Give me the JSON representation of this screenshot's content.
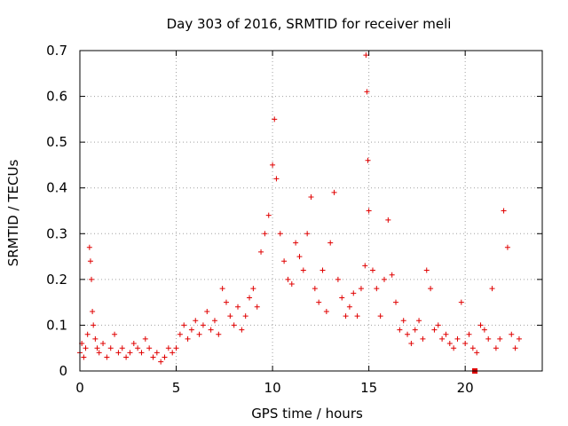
{
  "chart_data": {
    "type": "scatter",
    "title": "Day 303 of 2016, SRMTID for receiver meli",
    "xlabel": "GPS time / hours",
    "ylabel": "SRMTID / TECUs",
    "xlim": [
      0,
      24
    ],
    "ylim": [
      0,
      0.7
    ],
    "x_ticks": [
      0,
      5,
      10,
      15,
      20
    ],
    "x_tick_labels": [
      "0",
      "5",
      "10",
      "15",
      "20"
    ],
    "y_ticks": [
      0,
      0.1,
      0.2,
      0.3,
      0.4,
      0.5,
      0.6,
      0.7
    ],
    "y_tick_labels": [
      "0",
      "0.1",
      "0.2",
      "0.3",
      "0.4",
      "0.5",
      "0.6",
      "0.7"
    ],
    "grid": true,
    "marker": "+",
    "series": [
      {
        "name": "SRMTID",
        "color": "#e00000",
        "x": [
          0.0,
          0.1,
          0.2,
          0.3,
          0.4,
          0.5,
          0.55,
          0.6,
          0.65,
          0.7,
          0.8,
          0.9,
          1.0,
          1.2,
          1.4,
          1.6,
          1.8,
          2.0,
          2.2,
          2.4,
          2.6,
          2.8,
          3.0,
          3.2,
          3.4,
          3.6,
          3.8,
          4.0,
          4.2,
          4.4,
          4.6,
          4.8,
          5.0,
          5.2,
          5.4,
          5.6,
          5.8,
          6.0,
          6.2,
          6.4,
          6.6,
          6.8,
          7.0,
          7.2,
          7.4,
          7.6,
          7.8,
          8.0,
          8.2,
          8.4,
          8.6,
          8.8,
          9.0,
          9.2,
          9.4,
          9.6,
          9.8,
          10.0,
          10.1,
          10.2,
          10.4,
          10.6,
          10.8,
          11.0,
          11.2,
          11.4,
          11.6,
          11.8,
          12.0,
          12.2,
          12.4,
          12.6,
          12.8,
          13.0,
          13.2,
          13.4,
          13.6,
          13.8,
          14.0,
          14.2,
          14.4,
          14.6,
          14.8,
          14.85,
          14.9,
          14.95,
          15.0,
          15.2,
          15.4,
          15.6,
          15.8,
          16.0,
          16.2,
          16.4,
          16.6,
          16.8,
          17.0,
          17.2,
          17.4,
          17.6,
          17.8,
          18.0,
          18.2,
          18.4,
          18.6,
          18.8,
          19.0,
          19.2,
          19.4,
          19.6,
          19.8,
          20.0,
          20.2,
          20.4,
          20.6,
          20.8,
          21.0,
          21.2,
          21.4,
          21.6,
          21.8,
          22.0,
          22.2,
          22.4,
          22.6,
          22.8
        ],
        "values": [
          0.04,
          0.06,
          0.03,
          0.05,
          0.08,
          0.27,
          0.24,
          0.2,
          0.13,
          0.1,
          0.07,
          0.05,
          0.04,
          0.06,
          0.03,
          0.05,
          0.08,
          0.04,
          0.05,
          0.03,
          0.04,
          0.06,
          0.05,
          0.04,
          0.07,
          0.05,
          0.03,
          0.04,
          0.02,
          0.03,
          0.05,
          0.04,
          0.05,
          0.08,
          0.1,
          0.07,
          0.09,
          0.11,
          0.08,
          0.1,
          0.13,
          0.09,
          0.11,
          0.08,
          0.18,
          0.15,
          0.12,
          0.1,
          0.14,
          0.09,
          0.12,
          0.16,
          0.18,
          0.14,
          0.26,
          0.3,
          0.34,
          0.45,
          0.55,
          0.42,
          0.3,
          0.24,
          0.2,
          0.19,
          0.28,
          0.25,
          0.22,
          0.3,
          0.38,
          0.18,
          0.15,
          0.22,
          0.13,
          0.28,
          0.39,
          0.2,
          0.16,
          0.12,
          0.14,
          0.17,
          0.12,
          0.18,
          0.23,
          0.69,
          0.61,
          0.46,
          0.35,
          0.22,
          0.18,
          0.12,
          0.2,
          0.33,
          0.21,
          0.15,
          0.09,
          0.11,
          0.08,
          0.06,
          0.09,
          0.11,
          0.07,
          0.22,
          0.18,
          0.09,
          0.1,
          0.07,
          0.08,
          0.06,
          0.05,
          0.07,
          0.15,
          0.06,
          0.08,
          0.05,
          0.04,
          0.1,
          0.09,
          0.07,
          0.18,
          0.05,
          0.07,
          0.35,
          0.27,
          0.08,
          0.05,
          0.07
        ]
      }
    ],
    "annotations": [
      {
        "type": "square",
        "x": 20.5,
        "y": 0.0
      }
    ]
  }
}
